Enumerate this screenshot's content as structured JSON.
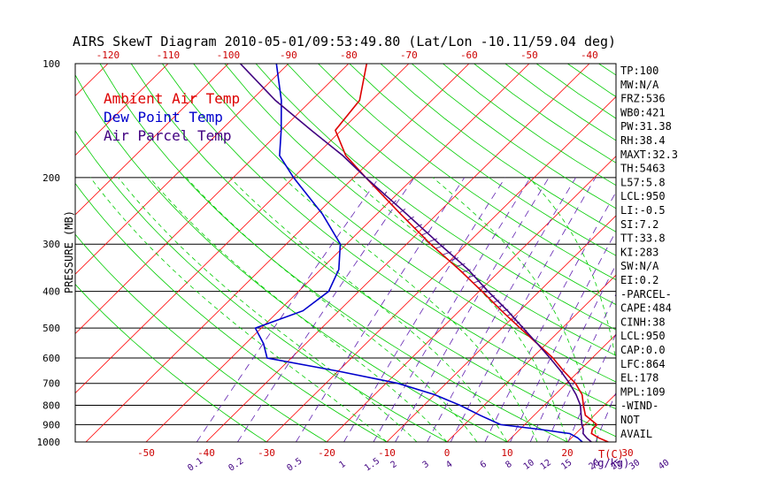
{
  "chart_data": {
    "type": "line",
    "title": "AIRS SkewT Diagram 2010-05-01/09:53:49.80 (Lat/Lon -10.11/59.04 deg)",
    "ylabel": "PRESSURE (MB)",
    "pressure_ticks": [
      "100",
      "200",
      "300",
      "400",
      "500",
      "600",
      "700",
      "800",
      "900",
      "1000"
    ],
    "top_temp_ticks": [
      "-120",
      "-110",
      "-100",
      "-90",
      "-80",
      "-70",
      "-60",
      "-50",
      "-40"
    ],
    "bottom_temp_ticks": [
      "-50",
      "-40",
      "-30",
      "-20",
      "-10",
      "0",
      "10",
      "20",
      "30"
    ],
    "bottom_temp_unit": "T(C)",
    "mixing_ratio_labels": [
      "0.1",
      "0.2",
      "0.5",
      "1",
      "1.5",
      "2",
      "3",
      "4",
      "6",
      "8",
      "10",
      "12",
      "15",
      "20",
      "25",
      "30",
      "40"
    ],
    "mixing_ratio_unit": "(g/kg)",
    "legend": {
      "ambient": "Ambient Air Temp",
      "dewpoint": "Dew Point Temp",
      "parcel": "Air Parcel Temp",
      "colors": {
        "ambient": "#dd0000",
        "dewpoint": "#0000cc",
        "parcel": "#400080"
      }
    },
    "series": [
      {
        "name": "Ambient Air Temp",
        "color": "#dd0000",
        "points": [
          [
            1000,
            26.8
          ],
          [
            975,
            24.5
          ],
          [
            950,
            22.6
          ],
          [
            925,
            22.0
          ],
          [
            900,
            22.0
          ],
          [
            850,
            18.5
          ],
          [
            800,
            16.5
          ],
          [
            750,
            14.5
          ],
          [
            700,
            11.5
          ],
          [
            650,
            7.5
          ],
          [
            600,
            3.5
          ],
          [
            550,
            -1.5
          ],
          [
            500,
            -7.0
          ],
          [
            450,
            -13.0
          ],
          [
            400,
            -19.5
          ],
          [
            350,
            -27.0
          ],
          [
            300,
            -36.0
          ],
          [
            250,
            -46.0
          ],
          [
            200,
            -58.0
          ],
          [
            175,
            -65.0
          ],
          [
            150,
            -71.0
          ],
          [
            125,
            -72.0
          ],
          [
            100,
            -77.0
          ]
        ]
      },
      {
        "name": "Dew Point Temp",
        "color": "#0000cc",
        "points": [
          [
            1000,
            22.5
          ],
          [
            975,
            21.0
          ],
          [
            950,
            19.0
          ],
          [
            925,
            13.0
          ],
          [
            900,
            6.0
          ],
          [
            850,
            1.0
          ],
          [
            800,
            -4.0
          ],
          [
            750,
            -10.0
          ],
          [
            700,
            -18.0
          ],
          [
            650,
            -30.0
          ],
          [
            600,
            -44.0
          ],
          [
            550,
            -47.0
          ],
          [
            500,
            -51.0
          ],
          [
            450,
            -46.0
          ],
          [
            400,
            -45.0
          ],
          [
            350,
            -47.0
          ],
          [
            300,
            -51.0
          ],
          [
            250,
            -59.0
          ],
          [
            200,
            -70.0
          ],
          [
            175,
            -76.0
          ],
          [
            150,
            -80.0
          ],
          [
            125,
            -85.0
          ],
          [
            100,
            -92.0
          ]
        ]
      },
      {
        "name": "Air Parcel Temp",
        "color": "#400080",
        "points": [
          [
            1000,
            24.0
          ],
          [
            975,
            22.5
          ],
          [
            950,
            21.2
          ],
          [
            925,
            20.5
          ],
          [
            900,
            19.5
          ],
          [
            850,
            17.8
          ],
          [
            800,
            16.0
          ],
          [
            750,
            13.5
          ],
          [
            700,
            10.5
          ],
          [
            650,
            7.0
          ],
          [
            600,
            3.0
          ],
          [
            550,
            -1.5
          ],
          [
            500,
            -6.5
          ],
          [
            450,
            -12.0
          ],
          [
            400,
            -18.5
          ],
          [
            350,
            -25.5
          ],
          [
            300,
            -34.5
          ],
          [
            250,
            -45.0
          ],
          [
            200,
            -58.0
          ],
          [
            175,
            -65.5
          ],
          [
            150,
            -75.0
          ],
          [
            125,
            -86.0
          ],
          [
            100,
            -98.0
          ]
        ]
      }
    ],
    "indices": [
      "TP:100",
      "MW:N/A",
      "FRZ:536",
      "WB0:421",
      "PW:31.38",
      "RH:38.4",
      "MAXT:32.3",
      "TH:5463",
      "L57:5.8",
      "LCL:950",
      "LI:-0.5",
      "SI:7.2",
      "TT:33.8",
      "KI:283",
      "SW:N/A",
      "EI:0.2",
      "-PARCEL-",
      "CAPE:484",
      "CINH:38",
      "LCL:950",
      "CAP:0.0",
      "LFC:864",
      "EL:178",
      "MPL:109",
      "-WIND-",
      "NOT",
      "AVAIL"
    ]
  }
}
